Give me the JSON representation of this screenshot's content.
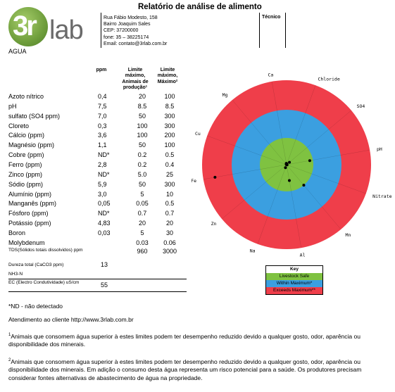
{
  "logo_text": {
    "part1": "3r",
    "part2": "lab"
  },
  "sample_label": "AGUA",
  "header": {
    "title": "Relatório de análise de alimento",
    "address_lines": [
      "Rua Fábio Modesto, 158",
      "Bairro Joaquim Sales",
      "CEP: 37200000",
      "fone: 35 – 38225174",
      "Email: contato@3rlab.com.br"
    ],
    "tecnico_label": "Técnico"
  },
  "table": {
    "col_ppm": "ppm",
    "col_limit1": [
      "Limite",
      "máximo,",
      "Animais de",
      "produção¹"
    ],
    "col_limit2": [
      "Limite",
      "máximo,",
      "Máximo²"
    ],
    "rows": [
      {
        "name": "Azoto nítrico",
        "ppm": "0,4",
        "lim1": "20",
        "lim2": "100"
      },
      {
        "name": "pH",
        "ppm": "7,5",
        "lim1": "8.5",
        "lim2": "8.5"
      },
      {
        "name": "sulfato (SO4 ppm)",
        "ppm": "7,0",
        "lim1": "50",
        "lim2": "300"
      },
      {
        "name": "Cloreto",
        "ppm": "0,3",
        "lim1": "100",
        "lim2": "300"
      },
      {
        "name": "Cálcio (ppm)",
        "ppm": "3,6",
        "lim1": "100",
        "lim2": "200"
      },
      {
        "name": "Magnésio (ppm)",
        "ppm": "1,1",
        "lim1": "50",
        "lim2": "100"
      },
      {
        "name": "Cobre (ppm)",
        "ppm": "ND*",
        "lim1": "0.2",
        "lim2": "0.5"
      },
      {
        "name": "Ferro (ppm)",
        "ppm": "2,8",
        "lim1": "0.2",
        "lim2": "0.4"
      },
      {
        "name": "Zinco (ppm)",
        "ppm": "ND*",
        "lim1": "5.0",
        "lim2": "25"
      },
      {
        "name": "Sódio (ppm)",
        "ppm": "5,9",
        "lim1": "50",
        "lim2": "300"
      },
      {
        "name": "Alumínio (ppm)",
        "ppm": "3,0",
        "lim1": "5",
        "lim2": "10"
      },
      {
        "name": "Manganês (ppm)",
        "ppm": "0,05",
        "lim1": "0.05",
        "lim2": "0.5"
      },
      {
        "name": "Fósforo (ppm)",
        "ppm": "ND*",
        "lim1": "0.7",
        "lim2": "0.7"
      },
      {
        "name": "Potássio (ppm)",
        "ppm": "4,83",
        "lim1": "20",
        "lim2": "20"
      },
      {
        "name": "Boron",
        "ppm": "0,03",
        "lim1": "5",
        "lim2": "30"
      },
      {
        "name": "Molybdenum",
        "ppm": "",
        "lim1": "0.03",
        "lim2": "0.06"
      }
    ],
    "tds_label": "TDS(Sólidos totais dissolvidos) ppm",
    "tds_lim1": "960",
    "tds_lim2": "3000",
    "dureza_label": "Dureza total (CaCO3 ppm)",
    "dureza_value": "13",
    "nh3_label": "NH3-N",
    "ec_label": "EC (Electro Condutividade) uS/cm",
    "ec_value": "55"
  },
  "notes": {
    "nd": "*ND - não detectado",
    "contact": "Atendimento ao cliente http://www.3rlab.com.br",
    "footnote1": "Animais que consomem água superior à estes limites podem ter desempenho reduzido devido a qualquer gosto, odor, aparência ou disponibilidade dos minerais.",
    "footnote2": "Animais que consomem água superior à estes limites podem ter desempenho reduzido devido a qualquer gosto, odor, aparência ou disponibilidade dos minerais. Em adição o consumo desta água representa um risco potencial para a saúde. Os produtores precisam considerar fontes alternativas de abastecimento de água na propriedade.",
    "sup1": "1",
    "sup2": "2"
  },
  "legend": {
    "title": "Key",
    "safe": "Livestock Safe",
    "within": "Within Maximum*",
    "exceeds": "Exceeds Maximum**"
  },
  "chart_data": {
    "type": "radar",
    "axes": [
      "Ca",
      "Chloride",
      "SO4",
      "pH",
      "Nitrate",
      "Mn",
      "Al",
      "Na",
      "Zn",
      "Fe",
      "Cu",
      "Mg"
    ],
    "zones": [
      {
        "name": "Livestock Safe",
        "color": "#7fc241"
      },
      {
        "name": "Within Maximum*",
        "color": "#3b9fe0"
      },
      {
        "name": "Exceeds Maximum**",
        "color": "#ef3e4a"
      }
    ],
    "points": [
      {
        "axis": "Ca",
        "value": 0.05
      },
      {
        "axis": "Chloride",
        "value": 0.03
      },
      {
        "axis": "SO4",
        "value": 0.14
      },
      {
        "axis": "pH",
        "value": 0.88
      },
      {
        "axis": "Nitrate",
        "value": 0.02
      },
      {
        "axis": "Mn",
        "value": 1.0
      },
      {
        "axis": "Al",
        "value": 0.6
      },
      {
        "axis": "Na",
        "value": 0.12
      },
      {
        "axis": "Zn",
        "value": 0.0
      },
      {
        "axis": "Fe",
        "value": 2.6
      },
      {
        "axis": "Cu",
        "value": 0.0
      },
      {
        "axis": "Mg",
        "value": 0.02
      }
    ]
  }
}
